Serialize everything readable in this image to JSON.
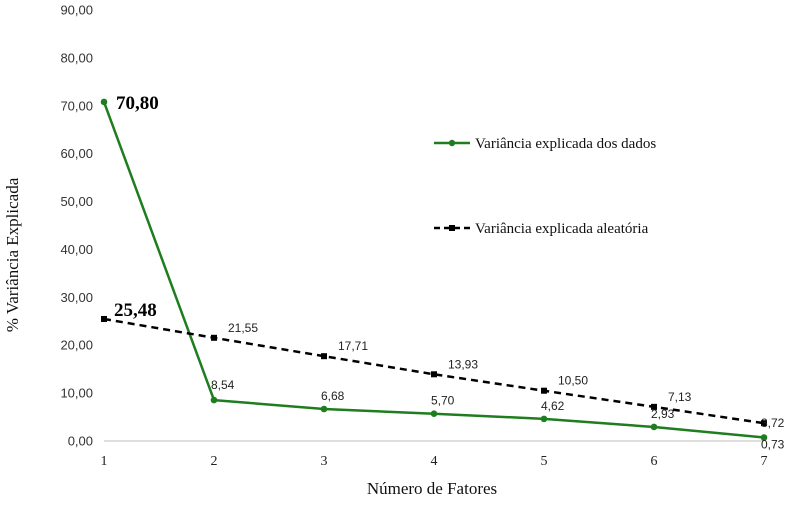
{
  "chart_data": {
    "type": "line",
    "xlabel": "Número de Fatores",
    "ylabel": "% Variância Explicada",
    "ylim": [
      0,
      90
    ],
    "yticks": [
      "0,00",
      "10,00",
      "20,00",
      "30,00",
      "40,00",
      "50,00",
      "60,00",
      "70,00",
      "80,00",
      "90,00"
    ],
    "x": [
      1,
      2,
      3,
      4,
      5,
      6,
      7
    ],
    "xticks": [
      "1",
      "2",
      "3",
      "4",
      "5",
      "6",
      "7"
    ],
    "grid": false,
    "legend_position": "right",
    "series": [
      {
        "name": "Variância explicada dos dados",
        "color": "#1e7d1e",
        "style": "solid",
        "marker": "circle",
        "values": [
          70.8,
          8.54,
          6.68,
          5.7,
          4.62,
          2.93,
          0.73
        ],
        "labels": [
          "70,80",
          "8,54",
          "6,68",
          "5,70",
          "4,62",
          "2,93",
          "0,73"
        ]
      },
      {
        "name": "Variância explicada aleatória",
        "color": "#000000",
        "style": "dashed",
        "marker": "square",
        "values": [
          25.48,
          21.55,
          17.71,
          13.93,
          10.5,
          7.13,
          3.72
        ],
        "labels": [
          "25,48",
          "21,55",
          "17,71",
          "13,93",
          "10,50",
          "7,13",
          "3,72"
        ]
      }
    ]
  }
}
